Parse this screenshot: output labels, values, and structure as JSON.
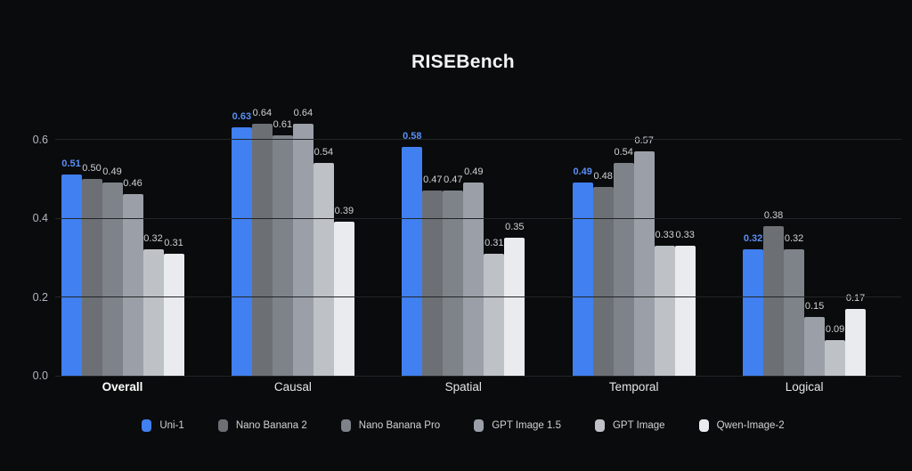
{
  "chart_data": {
    "type": "bar",
    "title": "RISEBench",
    "categories": [
      {
        "label": "Overall",
        "bold": true
      },
      {
        "label": "Causal",
        "bold": false
      },
      {
        "label": "Spatial",
        "bold": false
      },
      {
        "label": "Temporal",
        "bold": false
      },
      {
        "label": "Logical",
        "bold": false
      }
    ],
    "series": [
      {
        "name": "Uni-1",
        "color": "#4080f0",
        "values": [
          0.51,
          0.63,
          0.58,
          0.49,
          0.32
        ]
      },
      {
        "name": "Nano Banana 2",
        "color": "#6c7075",
        "values": [
          0.5,
          0.64,
          0.47,
          0.48,
          0.38
        ]
      },
      {
        "name": "Nano Banana Pro",
        "color": "#7e838a",
        "values": [
          0.49,
          0.61,
          0.47,
          0.54,
          0.32
        ]
      },
      {
        "name": "GPT Image 1.5",
        "color": "#9ba0a8",
        "values": [
          0.46,
          0.64,
          0.49,
          0.57,
          0.15
        ]
      },
      {
        "name": "GPT Image",
        "color": "#bec2c7",
        "values": [
          0.32,
          0.54,
          0.31,
          0.33,
          0.09
        ]
      },
      {
        "name": "Qwen-Image-2",
        "color": "#e9ebee",
        "values": [
          0.31,
          0.39,
          0.35,
          0.33,
          0.17
        ]
      }
    ],
    "yticks": [
      0.0,
      0.2,
      0.4,
      0.6
    ],
    "ylim": [
      0,
      0.66
    ],
    "grid": "horizontal",
    "legend_position": "bottom",
    "value_labels": "above-bars",
    "xlabel": "",
    "ylabel": ""
  },
  "colors": {
    "background": "#0a0b0c",
    "grid": "#232528",
    "axis_text": "#b3b7bc",
    "value_text": "#cfd1d4",
    "blue_value_text": "#5b8ff5",
    "title_text": "#f2f3f4",
    "category_text": "#e3e5e7",
    "category_bold_text": "#ffffff",
    "legend_text": "#cfd1d3"
  }
}
